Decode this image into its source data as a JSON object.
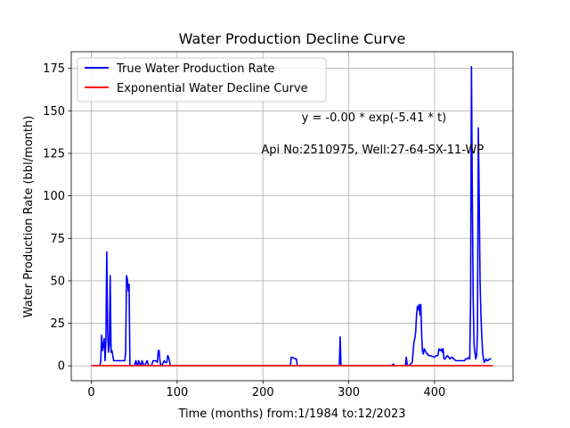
{
  "chart_data": {
    "type": "line",
    "title": "Water Production Decline Curve",
    "xlabel": "Time (months) from:1/1984 to:12/2023",
    "ylabel": "Water Production Rate (bbl/month)",
    "xlim": [
      -23.4,
      491.4
    ],
    "ylim": [
      -8.8,
      184.8
    ],
    "xticks": [
      0,
      100,
      200,
      300,
      400
    ],
    "yticks": [
      0,
      25,
      50,
      75,
      100,
      125,
      150,
      175
    ],
    "grid": true,
    "legend_position": "top-left",
    "annotations": [
      {
        "text": "y = -0.00 * exp(-5.41 * t)",
        "x": 245,
        "y": 144
      },
      {
        "text": "Api No:2510975, Well:27-64-SX-11-WP",
        "x": 198,
        "y": 125
      }
    ],
    "series": [
      {
        "name": "True Water Production Rate",
        "color": "#0000ff",
        "x": [
          0,
          10,
          11,
          12,
          13,
          14,
          15,
          16,
          17,
          18,
          19,
          20,
          21,
          22,
          23,
          24,
          25,
          26,
          27,
          28,
          30,
          35,
          39,
          40,
          41,
          42,
          43,
          44,
          45,
          46,
          47,
          50,
          52,
          53,
          54,
          55,
          56,
          57,
          58,
          59,
          60,
          61,
          62,
          65,
          67,
          70,
          72,
          75,
          77,
          78,
          79,
          80,
          81,
          82,
          84,
          85,
          86,
          88,
          89,
          90,
          91,
          92,
          93,
          94,
          96,
          232,
          233,
          234,
          238,
          239,
          240,
          241,
          289,
          290,
          291,
          292,
          350,
          352,
          353,
          366,
          367,
          368,
          369,
          370,
          374,
          376,
          377,
          378,
          379,
          380,
          381,
          382,
          383,
          384,
          385,
          386,
          387,
          388,
          390,
          391,
          392,
          393,
          395,
          400,
          402,
          404,
          405,
          406,
          407,
          408,
          409,
          410,
          411,
          412,
          415,
          418,
          420,
          421,
          422,
          425,
          430,
          435,
          436,
          438,
          440,
          441,
          442,
          443,
          444,
          445,
          446,
          447,
          448,
          449,
          450,
          451,
          452,
          453,
          454,
          455,
          456,
          457,
          458,
          459,
          460,
          461,
          462,
          464,
          466
        ],
        "values": [
          0,
          0,
          3,
          18,
          9,
          12,
          16,
          3,
          15,
          67,
          20,
          8,
          12,
          53,
          8,
          9,
          6,
          3,
          3,
          3,
          3,
          3,
          3,
          8,
          53,
          51,
          44,
          48,
          0,
          0,
          0,
          0,
          3,
          0,
          0,
          3,
          2,
          0,
          0,
          3,
          2,
          0,
          0,
          3,
          0,
          0,
          3,
          3,
          2,
          9,
          9,
          3,
          0,
          0,
          2,
          3,
          2,
          2,
          6,
          5,
          3,
          0,
          0,
          0,
          0,
          0,
          5,
          5,
          4,
          4,
          0,
          0,
          0,
          17,
          0,
          0,
          0,
          1,
          0,
          0,
          5,
          1,
          0,
          0,
          2,
          14,
          16,
          20,
          30,
          35,
          33,
          36,
          30,
          36,
          18,
          8,
          7,
          10,
          8,
          7,
          7,
          6,
          6,
          5,
          6,
          6,
          10,
          9,
          9,
          10,
          8,
          10,
          4,
          4,
          6,
          4,
          5,
          5,
          4,
          3,
          3,
          3,
          4,
          4,
          5,
          4,
          40,
          176,
          100,
          40,
          12,
          8,
          4,
          6,
          20,
          140,
          100,
          50,
          30,
          18,
          8,
          4,
          2,
          3,
          4,
          3,
          3,
          4,
          4
        ],
        "values_x_note": "paired with x"
      },
      {
        "name": "Exponential Water Decline Curve",
        "color": "#ff0000",
        "x": [
          0,
          468
        ],
        "values": [
          0,
          0
        ]
      }
    ]
  }
}
